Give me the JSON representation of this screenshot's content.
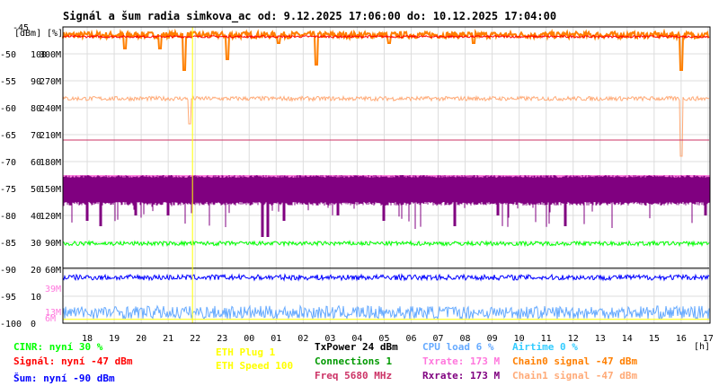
{
  "title": "Signál a šum radia simkova_ac od: 9.12.2025 17:06:00 do: 10.12.2025 17:04:00",
  "y_unit_labels": [
    "[dBm]",
    "[%]"
  ],
  "x_unit": "[h]",
  "colors": {
    "cinr": "#00ff00",
    "signal": "#ff0000",
    "noise": "#0000ff",
    "eth_plug": "#ffff00",
    "eth_speed": "#ffff00",
    "txpower": "#000000",
    "connections": "#009900",
    "freq": "#cc3366",
    "cpu": "#66aaff",
    "txrate": "#ff77dd",
    "rxrate": "#800080",
    "airtime": "#33ccff",
    "chain0": "#ff7f00",
    "chain1": "#ffaa77",
    "grid": "#dddddd",
    "frame": "#000000"
  },
  "legend": {
    "cinr": "CINR: nyní 30 %",
    "signal": "Signál: nyní -47 dBm",
    "noise": "Šum: nyní -90 dBm",
    "eth_plug": "ETH Plug 1",
    "eth_speed": "ETH Speed 100",
    "txpower": "TxPower 24 dBm",
    "connections": "Connections 1",
    "freq": "Freq 5680 MHz",
    "cpu": "CPU load 6 %",
    "txrate": "Txrate: 173 M",
    "rxrate": "Rxrate: 173 M",
    "airtime": "Airtime 0 %",
    "chain0": "Chain0 signal -47 dBm",
    "chain1": "Chain1 signal -47 dBm"
  },
  "chart_data": {
    "type": "line",
    "title": "Signál a šum radia simkova_ac od: 9.12.2025 17:06:00 do: 10.12.2025 17:04:00",
    "xlabel": "[h]",
    "ylabel": "[dBm] [%]",
    "x_hours": [
      "18",
      "19",
      "20",
      "21",
      "22",
      "23",
      "00",
      "01",
      "02",
      "03",
      "04",
      "05",
      "06",
      "07",
      "08",
      "09",
      "10",
      "11",
      "12",
      "13",
      "14",
      "15",
      "16",
      "17"
    ],
    "xlim_hours": [
      17.1,
      17.07
    ],
    "ylim_dbm": [
      -100,
      -45
    ],
    "y_ticks": [
      {
        "dbm": "-45",
        "pct": "",
        "rate": ""
      },
      {
        "dbm": "-50",
        "pct": "100",
        "rate": "300M"
      },
      {
        "dbm": "-55",
        "pct": "90",
        "rate": "270M"
      },
      {
        "dbm": "-60",
        "pct": "80",
        "rate": "240M"
      },
      {
        "dbm": "-65",
        "pct": "70",
        "rate": "210M"
      },
      {
        "dbm": "-70",
        "pct": "60",
        "rate": "180M"
      },
      {
        "dbm": "-75",
        "pct": "50",
        "rate": "150M"
      },
      {
        "dbm": "-80",
        "pct": "40",
        "rate": "120M"
      },
      {
        "dbm": "-85",
        "pct": "30",
        "rate": "90M"
      },
      {
        "dbm": "-90",
        "pct": "20",
        "rate": "60M"
      },
      {
        "dbm": "-95",
        "pct": "10",
        "rate": ""
      },
      {
        "dbm": "-100",
        "pct": "0",
        "rate": ""
      }
    ],
    "extra_ticks": [
      {
        "label": "39M",
        "dbm": -93.5,
        "color": "#ff77dd"
      },
      {
        "label": "13M",
        "dbm": -97.8,
        "color": "#ff77dd"
      },
      {
        "label": "6M",
        "dbm": -99.0,
        "color": "#ff77dd"
      }
    ],
    "grid": true,
    "series": [
      {
        "name": "Chain0 signal",
        "key": "chain0",
        "level_dbm": -46.5,
        "spread": 0.6,
        "dips": [
          [
            19.4,
            -49
          ],
          [
            20.7,
            -49
          ],
          [
            21.6,
            -53
          ],
          [
            23.2,
            -51
          ],
          [
            1.1,
            -48
          ],
          [
            2.5,
            -52
          ],
          [
            5.2,
            -48
          ],
          [
            8.3,
            -48
          ],
          [
            16.0,
            -53
          ]
        ]
      },
      {
        "name": "Signál",
        "key": "signal",
        "level_dbm": -46.8,
        "spread": 0.2,
        "dips": []
      },
      {
        "name": "Chain1 signal",
        "key": "chain1",
        "level_dbm": -58.3,
        "spread": 0.4,
        "dips": [
          [
            21.8,
            -63
          ],
          [
            16.0,
            -69
          ]
        ]
      },
      {
        "name": "Freq",
        "key": "freq",
        "level_dbm": -66.0,
        "spread": 0.0,
        "dips": []
      },
      {
        "name": "Txrate",
        "key": "txrate",
        "band_dbm": [
          -72.5,
          -77.0
        ],
        "spread": 0.0,
        "dips": []
      },
      {
        "name": "Rxrate",
        "key": "rxrate",
        "band_dbm": [
          -72.5,
          -77.5
        ],
        "spread": 2.5,
        "dips": [
          [
            18.0,
            -81
          ],
          [
            18.5,
            -82
          ],
          [
            19.8,
            -80
          ],
          [
            21.0,
            -80
          ],
          [
            0.5,
            -84
          ],
          [
            0.7,
            -84
          ],
          [
            1.3,
            -81
          ],
          [
            3.3,
            -80
          ],
          [
            5.0,
            -81
          ],
          [
            7.6,
            -82
          ],
          [
            9.2,
            -80
          ],
          [
            11.7,
            -82
          ],
          [
            16.9,
            -80
          ]
        ]
      },
      {
        "name": "CINR",
        "key": "cinr",
        "level_dbm": -85.2,
        "spread": 0.4,
        "dips": []
      },
      {
        "name": "Šum",
        "key": "noise",
        "level_dbm": -91.5,
        "spread": 0.5,
        "dips": []
      },
      {
        "name": "CPU load",
        "key": "cpu",
        "level_dbm": -98.0,
        "spread": 1.2,
        "dips": []
      },
      {
        "name": "TxPower",
        "key": "txpower",
        "level_dbm": -89.8,
        "spread": 0.0,
        "dips": []
      },
      {
        "name": "ETH Speed",
        "key": "eth_speed",
        "level_dbm": -99.3,
        "spread": 0.0,
        "dips": []
      }
    ],
    "vertical_marker_hour": 21.9
  }
}
